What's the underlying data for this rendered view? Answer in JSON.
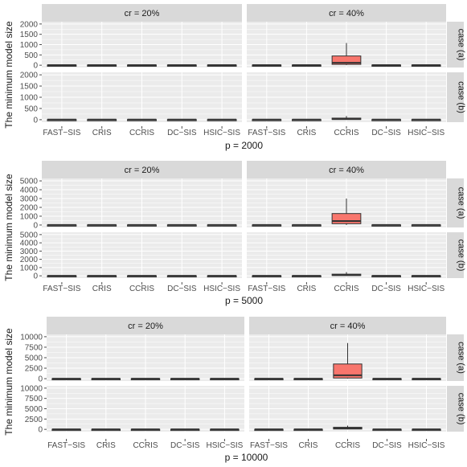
{
  "chart_data": [
    {
      "type": "boxplot",
      "xlabel": "p = 2000",
      "ylabel": "The minimum model size",
      "ylim": [
        0,
        2000
      ],
      "yticks": [
        0,
        500,
        1000,
        1500,
        2000
      ],
      "yticklabels": [
        "0",
        "500",
        "1000",
        "1500",
        "2000"
      ],
      "categories": [
        "FAST−SIS",
        "CRIS",
        "CCRIS",
        "DC−SIS",
        "HSIC−SIS"
      ],
      "col_strips": [
        "cr = 20%",
        "cr = 40%"
      ],
      "row_strips": [
        "case (a)",
        "case (b)"
      ],
      "panels": [
        {
          "col": 0,
          "row": 0,
          "boxes": [
            [
              3,
              5,
              6,
              8,
              12
            ],
            [
              3,
              5,
              6,
              8,
              12
            ],
            [
              3,
              5,
              6,
              8,
              12
            ],
            [
              3,
              5,
              6,
              8,
              12
            ],
            [
              3,
              5,
              6,
              8,
              12
            ]
          ]
        },
        {
          "col": 1,
          "row": 0,
          "boxes": [
            [
              3,
              5,
              6,
              8,
              12
            ],
            [
              3,
              5,
              6,
              8,
              12
            ],
            [
              5,
              40,
              120,
              450,
              1080
            ],
            [
              3,
              5,
              6,
              8,
              12
            ],
            [
              3,
              5,
              6,
              8,
              12
            ]
          ]
        },
        {
          "col": 0,
          "row": 1,
          "boxes": [
            [
              2,
              3,
              4,
              5,
              8
            ],
            [
              2,
              3,
              4,
              5,
              8
            ],
            [
              2,
              3,
              4,
              5,
              8
            ],
            [
              2,
              3,
              4,
              5,
              8
            ],
            [
              2,
              3,
              4,
              5,
              8
            ]
          ]
        },
        {
          "col": 1,
          "row": 1,
          "boxes": [
            [
              2,
              3,
              4,
              5,
              8
            ],
            [
              2,
              3,
              4,
              5,
              8
            ],
            [
              3,
              10,
              30,
              70,
              160
            ],
            [
              2,
              3,
              4,
              5,
              8
            ],
            [
              2,
              3,
              4,
              5,
              8
            ]
          ]
        }
      ]
    },
    {
      "type": "boxplot",
      "xlabel": "p = 5000",
      "ylabel": "The minimum model size",
      "ylim": [
        0,
        5000
      ],
      "yticks": [
        0,
        1000,
        2000,
        3000,
        4000,
        5000
      ],
      "yticklabels": [
        "0",
        "1000",
        "2000",
        "3000",
        "4000",
        "5000"
      ],
      "categories": [
        "FAST−SIS",
        "CRIS",
        "CCRIS",
        "DC−SIS",
        "HSIC−SIS"
      ],
      "col_strips": [
        "cr = 20%",
        "cr = 40%"
      ],
      "row_strips": [
        "case (a)",
        "case (b)"
      ],
      "panels": [
        {
          "col": 0,
          "row": 0,
          "boxes": [
            [
              3,
              5,
              6,
              8,
              12
            ],
            [
              3,
              5,
              6,
              8,
              12
            ],
            [
              3,
              5,
              6,
              8,
              12
            ],
            [
              3,
              5,
              6,
              8,
              12
            ],
            [
              3,
              5,
              6,
              8,
              12
            ]
          ]
        },
        {
          "col": 1,
          "row": 0,
          "boxes": [
            [
              3,
              5,
              6,
              8,
              12
            ],
            [
              3,
              5,
              6,
              8,
              12
            ],
            [
              10,
              150,
              450,
              1300,
              3000
            ],
            [
              3,
              5,
              6,
              8,
              12
            ],
            [
              3,
              5,
              6,
              8,
              12
            ]
          ]
        },
        {
          "col": 0,
          "row": 1,
          "boxes": [
            [
              2,
              3,
              4,
              5,
              8
            ],
            [
              2,
              3,
              4,
              5,
              8
            ],
            [
              2,
              3,
              4,
              5,
              8
            ],
            [
              2,
              3,
              4,
              5,
              8
            ],
            [
              2,
              3,
              4,
              5,
              8
            ]
          ]
        },
        {
          "col": 1,
          "row": 1,
          "boxes": [
            [
              2,
              3,
              4,
              5,
              8
            ],
            [
              2,
              3,
              4,
              5,
              8
            ],
            [
              5,
              40,
              90,
              200,
              450
            ],
            [
              2,
              3,
              4,
              5,
              8
            ],
            [
              2,
              3,
              4,
              5,
              8
            ]
          ]
        }
      ]
    },
    {
      "type": "boxplot",
      "xlabel": "p = 10000",
      "ylabel": "The minimum model size",
      "ylim": [
        0,
        10000
      ],
      "yticks": [
        0,
        2500,
        5000,
        7500,
        10000
      ],
      "yticklabels": [
        "0",
        "2500",
        "5000",
        "7500",
        "10000"
      ],
      "categories": [
        "FAST−SIS",
        "CRIS",
        "CCRIS",
        "DC−SIS",
        "HSIC−SIS"
      ],
      "col_strips": [
        "cr = 20%",
        "cr = 40%"
      ],
      "row_strips": [
        "case (a)",
        "case (b)"
      ],
      "panels": [
        {
          "col": 0,
          "row": 0,
          "boxes": [
            [
              3,
              5,
              6,
              8,
              12
            ],
            [
              3,
              5,
              6,
              8,
              12
            ],
            [
              3,
              5,
              6,
              8,
              12
            ],
            [
              3,
              5,
              6,
              8,
              12
            ],
            [
              3,
              5,
              6,
              8,
              12
            ]
          ]
        },
        {
          "col": 1,
          "row": 0,
          "boxes": [
            [
              3,
              5,
              6,
              8,
              12
            ],
            [
              3,
              5,
              6,
              8,
              12
            ],
            [
              10,
              150,
              800,
              3500,
              8500
            ],
            [
              3,
              5,
              6,
              8,
              12
            ],
            [
              3,
              5,
              6,
              8,
              12
            ]
          ]
        },
        {
          "col": 0,
          "row": 1,
          "boxes": [
            [
              2,
              3,
              4,
              5,
              8
            ],
            [
              2,
              3,
              4,
              5,
              8
            ],
            [
              2,
              3,
              4,
              5,
              8
            ],
            [
              2,
              3,
              4,
              5,
              8
            ],
            [
              2,
              3,
              4,
              5,
              8
            ]
          ]
        },
        {
          "col": 1,
          "row": 1,
          "boxes": [
            [
              2,
              3,
              4,
              5,
              8
            ],
            [
              2,
              3,
              4,
              5,
              8
            ],
            [
              10,
              80,
              250,
              500,
              900
            ],
            [
              2,
              3,
              4,
              5,
              8
            ],
            [
              2,
              3,
              4,
              5,
              8
            ]
          ]
        }
      ]
    }
  ],
  "colors": {
    "panel_bg": "#ebebeb",
    "strip_bg": "#d9d9d9",
    "grid": "#ffffff",
    "box_fill_highlight": "#f8766d",
    "box_fill": "#ffffff",
    "box_line": "#333333",
    "text": "#1a1a1a",
    "tick_text": "#4d4d4d"
  }
}
